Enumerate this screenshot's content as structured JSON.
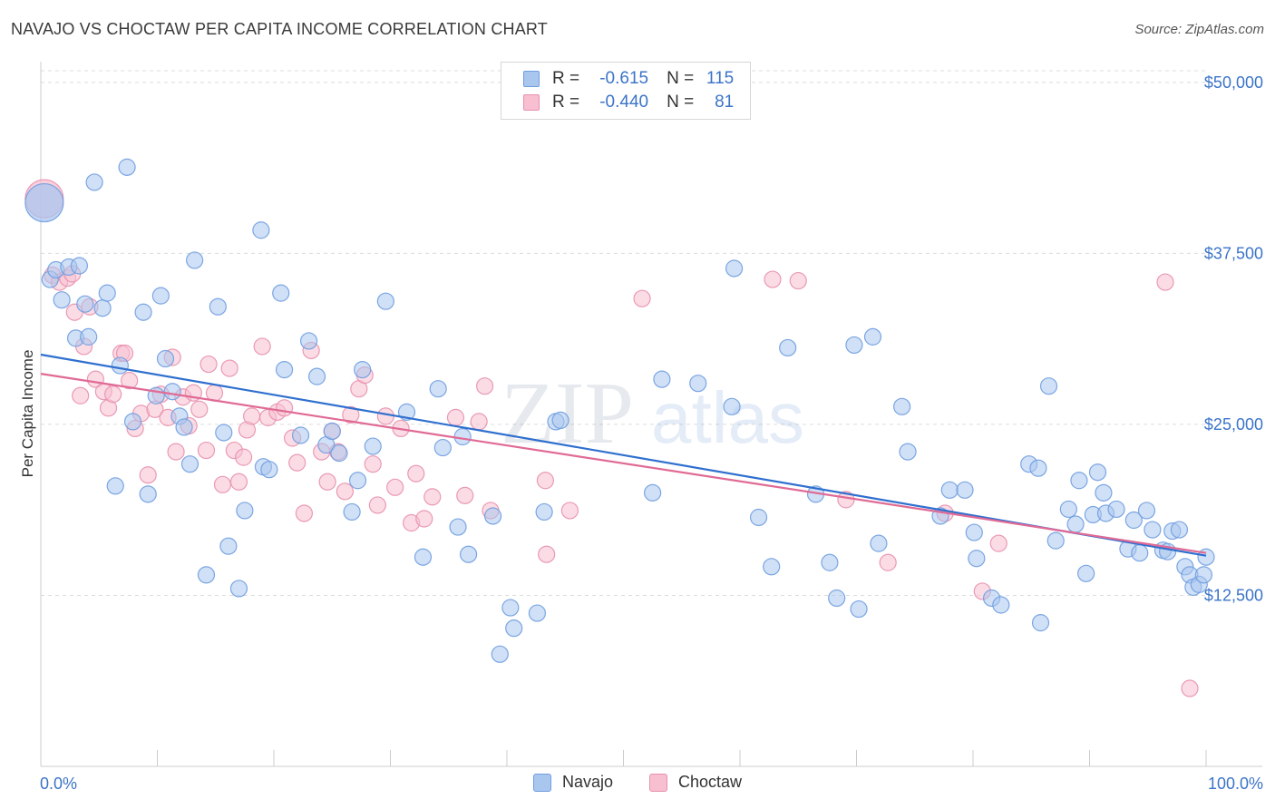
{
  "header": {
    "title": "NAVAJO VS CHOCTAW PER CAPITA INCOME CORRELATION CHART",
    "source": "Source: ZipAtlas.com"
  },
  "watermark": {
    "zip": "ZIP",
    "atlas": "atlas"
  },
  "legend": {
    "rows": [
      {
        "r_label": "R =",
        "r_value": "-0.615",
        "n_label": "N =",
        "n_value": "115",
        "color": "#a9c6ef",
        "border": "#6f9de0"
      },
      {
        "r_label": "R =",
        "r_value": "-0.440",
        "n_label": "N =",
        "n_value": "81",
        "color": "#f7bfd0",
        "border": "#e890ad"
      }
    ]
  },
  "bottom_legend": [
    {
      "label": "Navajo",
      "color": "#a9c6ef",
      "border": "#6f9de0"
    },
    {
      "label": "Choctaw",
      "color": "#f7bfd0",
      "border": "#e890ad"
    }
  ],
  "chart_data": {
    "type": "scatter",
    "ylabel": "Per Capita Income",
    "x_tick_labels": [
      "0.0%",
      "100.0%"
    ],
    "y_tick_labels": [
      "$12,500",
      "$25,000",
      "$37,500",
      "$50,000"
    ],
    "y_ticks": [
      12500,
      25000,
      37500,
      50000
    ],
    "xlim": [
      0,
      100
    ],
    "ylim": [
      0,
      51250
    ],
    "grid": true,
    "series": [
      {
        "name": "Navajo",
        "color": "#6f9de0",
        "fill": "#a9c6ef",
        "trend": {
          "x": [
            0,
            100
          ],
          "y": [
            30100,
            15400
          ]
        },
        "points": [
          [
            0.3,
            41200,
            "big"
          ],
          [
            0.8,
            35600
          ],
          [
            1.3,
            36300
          ],
          [
            1.8,
            34100
          ],
          [
            2.4,
            36500
          ],
          [
            3.0,
            31300
          ],
          [
            3.3,
            36600
          ],
          [
            3.8,
            33800
          ],
          [
            4.1,
            31400
          ],
          [
            4.6,
            42700
          ],
          [
            5.3,
            33500
          ],
          [
            5.7,
            34600
          ],
          [
            6.4,
            20500
          ],
          [
            6.8,
            29300
          ],
          [
            7.4,
            43800
          ],
          [
            7.9,
            25200
          ],
          [
            8.8,
            33200
          ],
          [
            9.2,
            19900
          ],
          [
            9.9,
            27100
          ],
          [
            10.3,
            34400
          ],
          [
            10.7,
            29800
          ],
          [
            11.3,
            27400
          ],
          [
            11.9,
            25600
          ],
          [
            12.3,
            24800
          ],
          [
            12.8,
            22100
          ],
          [
            13.2,
            37000
          ],
          [
            14.2,
            14000
          ],
          [
            15.2,
            33600
          ],
          [
            15.7,
            24400
          ],
          [
            16.1,
            16100
          ],
          [
            17.0,
            13000
          ],
          [
            17.5,
            18700
          ],
          [
            18.9,
            39200
          ],
          [
            19.1,
            21900
          ],
          [
            19.6,
            21700
          ],
          [
            20.6,
            34600
          ],
          [
            20.9,
            29000
          ],
          [
            22.3,
            24200
          ],
          [
            23.0,
            31100
          ],
          [
            23.7,
            28500
          ],
          [
            24.5,
            23500
          ],
          [
            25.0,
            24500
          ],
          [
            25.6,
            22900
          ],
          [
            26.7,
            18600
          ],
          [
            27.2,
            20900
          ],
          [
            27.6,
            29000
          ],
          [
            28.5,
            23400
          ],
          [
            29.6,
            34000
          ],
          [
            31.4,
            25900
          ],
          [
            32.8,
            15300
          ],
          [
            34.1,
            27600
          ],
          [
            34.5,
            23300
          ],
          [
            35.8,
            17500
          ],
          [
            36.2,
            24100
          ],
          [
            36.7,
            15500
          ],
          [
            38.8,
            18300
          ],
          [
            39.4,
            8200
          ],
          [
            40.3,
            11600
          ],
          [
            40.6,
            10100
          ],
          [
            42.6,
            11200
          ],
          [
            43.2,
            18600
          ],
          [
            44.2,
            25200
          ],
          [
            44.6,
            25300
          ],
          [
            52.5,
            20000
          ],
          [
            53.3,
            28300
          ],
          [
            56.4,
            28000
          ],
          [
            59.3,
            26300
          ],
          [
            59.5,
            36400
          ],
          [
            61.6,
            18200
          ],
          [
            62.7,
            14600
          ],
          [
            64.1,
            30600
          ],
          [
            66.5,
            19900
          ],
          [
            67.7,
            14900
          ],
          [
            68.3,
            12300
          ],
          [
            69.8,
            30800
          ],
          [
            70.2,
            11500
          ],
          [
            71.4,
            31400
          ],
          [
            71.9,
            16300
          ],
          [
            73.9,
            26300
          ],
          [
            74.4,
            23000
          ],
          [
            77.2,
            18300
          ],
          [
            78.0,
            20200
          ],
          [
            79.3,
            20200
          ],
          [
            80.1,
            17100
          ],
          [
            80.3,
            15200
          ],
          [
            81.6,
            12300
          ],
          [
            82.4,
            11800
          ],
          [
            84.8,
            22100
          ],
          [
            85.6,
            21800
          ],
          [
            85.8,
            10500
          ],
          [
            86.5,
            27800
          ],
          [
            87.1,
            16500
          ],
          [
            88.2,
            18800
          ],
          [
            88.8,
            17700
          ],
          [
            89.1,
            20900
          ],
          [
            89.7,
            14100
          ],
          [
            90.3,
            18400
          ],
          [
            90.7,
            21500
          ],
          [
            91.2,
            20000
          ],
          [
            91.4,
            18500
          ],
          [
            92.3,
            18800
          ],
          [
            93.3,
            15900
          ],
          [
            93.8,
            18000
          ],
          [
            94.3,
            15600
          ],
          [
            94.9,
            18700
          ],
          [
            95.4,
            17300
          ],
          [
            96.3,
            15800
          ],
          [
            96.7,
            15700
          ],
          [
            97.1,
            17200
          ],
          [
            97.7,
            17300
          ],
          [
            98.2,
            14600
          ],
          [
            98.6,
            14000
          ],
          [
            98.9,
            13100
          ],
          [
            99.4,
            13300
          ],
          [
            99.8,
            14000
          ],
          [
            100.0,
            15300
          ]
        ]
      },
      {
        "name": "Choctaw",
        "color": "#e890ad",
        "fill": "#f7bfd0",
        "trend": {
          "x": [
            0,
            100
          ],
          "y": [
            28700,
            15600
          ]
        },
        "points": [
          [
            0.3,
            41500,
            "big"
          ],
          [
            1.0,
            35900
          ],
          [
            1.6,
            35400
          ],
          [
            2.3,
            35700
          ],
          [
            2.7,
            36000
          ],
          [
            2.9,
            33200
          ],
          [
            3.4,
            27100
          ],
          [
            3.7,
            30700
          ],
          [
            4.2,
            33600
          ],
          [
            4.7,
            28300
          ],
          [
            5.4,
            27400
          ],
          [
            5.8,
            26200
          ],
          [
            6.2,
            27200
          ],
          [
            6.9,
            30200
          ],
          [
            7.2,
            30200
          ],
          [
            7.6,
            28200
          ],
          [
            8.1,
            24700
          ],
          [
            8.6,
            25800
          ],
          [
            9.2,
            21300
          ],
          [
            9.8,
            26100
          ],
          [
            10.3,
            27200
          ],
          [
            10.9,
            25500
          ],
          [
            11.3,
            29900
          ],
          [
            11.6,
            23000
          ],
          [
            12.2,
            27000
          ],
          [
            12.7,
            24900
          ],
          [
            13.1,
            27300
          ],
          [
            13.6,
            26100
          ],
          [
            14.2,
            23100
          ],
          [
            14.4,
            29400
          ],
          [
            14.9,
            27300
          ],
          [
            15.6,
            20600
          ],
          [
            16.2,
            29100
          ],
          [
            16.6,
            23100
          ],
          [
            17.0,
            20800
          ],
          [
            17.4,
            22600
          ],
          [
            17.7,
            24600
          ],
          [
            18.1,
            25600
          ],
          [
            19.0,
            30700
          ],
          [
            19.5,
            25500
          ],
          [
            20.3,
            25900
          ],
          [
            20.9,
            26200
          ],
          [
            21.6,
            24000
          ],
          [
            22.0,
            22200
          ],
          [
            22.6,
            18500
          ],
          [
            23.2,
            30400
          ],
          [
            24.1,
            23000
          ],
          [
            24.6,
            20800
          ],
          [
            25.0,
            24500
          ],
          [
            25.5,
            23000
          ],
          [
            26.1,
            20100
          ],
          [
            26.6,
            25700
          ],
          [
            27.3,
            27600
          ],
          [
            27.8,
            28600
          ],
          [
            28.5,
            22100
          ],
          [
            28.9,
            19100
          ],
          [
            29.6,
            25600
          ],
          [
            30.4,
            20400
          ],
          [
            30.9,
            24700
          ],
          [
            31.8,
            17800
          ],
          [
            32.2,
            21400
          ],
          [
            32.9,
            18100
          ],
          [
            33.6,
            19700
          ],
          [
            35.6,
            25500
          ],
          [
            36.4,
            19800
          ],
          [
            37.6,
            25200
          ],
          [
            38.1,
            27800
          ],
          [
            38.6,
            18700
          ],
          [
            43.3,
            20900
          ],
          [
            43.4,
            15500
          ],
          [
            45.4,
            18700
          ],
          [
            51.6,
            34200
          ],
          [
            62.8,
            35600
          ],
          [
            65.0,
            35500
          ],
          [
            69.1,
            19500
          ],
          [
            72.7,
            14900
          ],
          [
            77.6,
            18500
          ],
          [
            80.8,
            12800
          ],
          [
            82.2,
            16300
          ],
          [
            96.5,
            35400
          ],
          [
            98.6,
            5700
          ]
        ]
      }
    ]
  }
}
